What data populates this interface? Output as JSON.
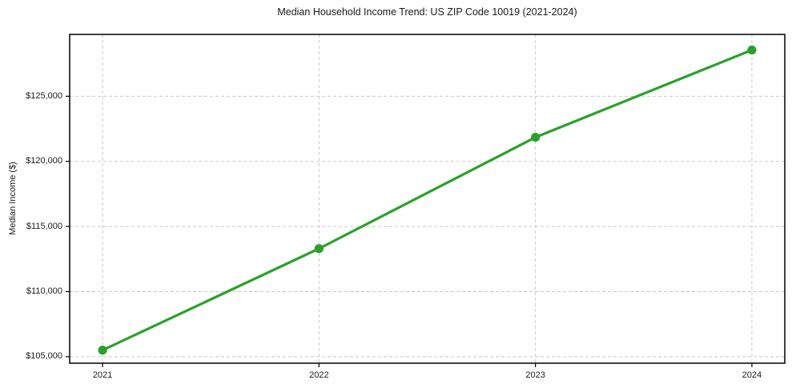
{
  "chart_data": {
    "type": "line",
    "title": "Median Household Income Trend: US ZIP Code 10019 (2021-2024)",
    "xlabel": "",
    "ylabel": "Median Income ($)",
    "categories": [
      "2021",
      "2022",
      "2023",
      "2024"
    ],
    "values": [
      105500,
      113300,
      121850,
      128550
    ],
    "ylim": [
      104500,
      129750
    ],
    "yticks": [
      105000,
      110000,
      115000,
      120000,
      125000
    ],
    "ytick_labels": [
      "$105,000",
      "$110,000",
      "$115,000",
      "$120,000",
      "$125,000"
    ],
    "grid": true,
    "grid_style": "dashed",
    "legend": "none",
    "line_color": "#2ca02c",
    "marker_color": "#2ca02c",
    "grid_color": "#c9c9c9",
    "spine_color": "#000000",
    "text_color": "#1a1a1a",
    "background_color": "#ffffff"
  }
}
